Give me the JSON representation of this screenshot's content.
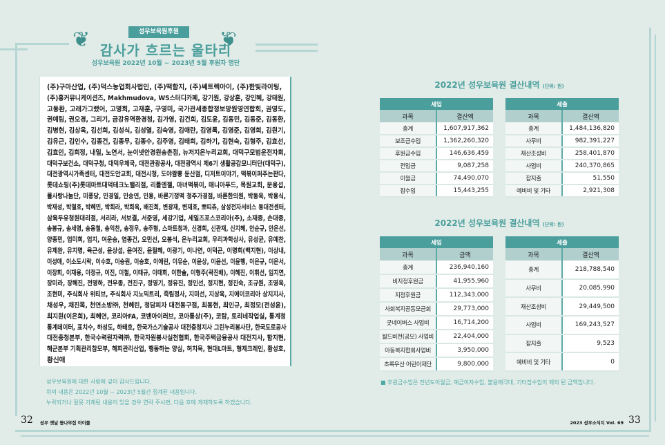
{
  "header": {
    "banner": "성우보육원후원",
    "title": "감사가 흐르는 울타리",
    "subtitle": "성우보육원 2022년 10월 ~ 2023년 5월 후원자 명단"
  },
  "donor_lines": [
    "(주)구마산업, (주)덕스농업회사법인, (주)떡함지, (주)쎄트렉아이, (주)한빛라이팅,",
    "(주)홍커뮤니케이션즈, Makhmudova, WS스터디카페, 강기원, 강상훈, 강인혜, 강태원,",
    "고동환, 고래가그랬어, 고명희, 고재훈, 구영미, 국가관세종합정보망원영연합회, 권영도,",
    "권예림, 권오경, 그리기, 금강유역환경청, 김가영, 김건희, 김도윤, 김동민, 김동준, 김동환,",
    "김병현, 김상욱, 김선희, 김성식, 김성열, 김숙영, 김애란, 김영록, 김영준, 김영희, 김원기,",
    "김유근, 김인수, 김종건, 김종무, 김종수, 김주영, 김태희, 김하기, 김현숙, 김형주, 김효선,",
    "김효인, 김희정, 내일, 노연서, 눈이넷안경원송촌점, 뉴저지온누리교회, 대덕구모범운전자회,",
    "대덕구보건소, 대덕구청, 대덕우체국, 대전관광공사, 대전광역시 제6기 생활공감모니터단(대덕구),",
    "대전광역시가족센터, 대전도안교회, 대전시청, 도야짬뽕 둔산점, 디저트이야기, 떡볶이퍼주는판다,",
    "롯데쇼핑(주)롯데마트대덕테크노밸리점, 리틀엔젤, 마녀떡볶이, 매니아푸드, 목원교회, 문용섭,",
    "물사랑나눔단, 미퐁당, 민경일, 민승연, 민용, 바른기정떡 청주가경점, 바른한의원, 박동욱, 박용식,",
    "박재성, 박철호, 박혜민, 박회라, 박희옥, 배진희, 변광재, 변재호, 뽀띠츄, 삼성전자서비스 동대전센터,",
    "삼육두유청원대리점, 서리라, 서보결, 서준영, 세강기업, 세일즈포스코리아(주), 소재중, 손대중,",
    "송봉규, 송세영, 송용철, 송익찬, 송정우, 송주형, 스마트청과, 신경희, 신관재, 신지혜, 안순규, 안은선,",
    "양종민, 엄미희, 엄지, 여운승, 염종건, 오민선, 오봉석, 온누리교회, 우리과학상사, 유성균, 유예찬,",
    "유제완, 유지명, 육근성, 윤상섭, 윤여진, 윤필혜, 이광기, 이나연, 이덕곤, 이명희(백지현), 이상내,",
    "이성애, 이소도시락, 이수호, 이승원, 이승호, 이애린, 이유순, 이윤상, 이윤선, 이윤행, 이은규, 이은서,",
    "이장희, 이재용, 이정규, 이진, 이철, 이태규, 이태희, 이한솔, 이형주(곽진배), 이혜진, 이휘선, 임지연,",
    "장미라, 장혜진, 전명하, 전우종, 전진구, 정영기, 정유진, 정인선, 정지현, 정진숙, 조규원, 조영욱,",
    "조현미, 주식회사 위티브, 주식회사 지노믹트리, 죽림정사, 지미선, 지상욱, 지에이코리아 상지지사,",
    "채성우, 채진목, 천연소방㈜, 천혜린, 청담피자 대전동구점, 최동현, 최인규, 최정모(전성윤),",
    "최지원(이은희), 최혜연, 코리아FA, 코밴아이러브, 코아통상(주), 코탐, 토리네작업실, 통계청",
    "통계데이터, 표치수, 하성도, 하태호, 한국가스기술공사 대전충청지사 그린누리봉사단, 한국도로공사",
    "대전충청본부, 한국수력원자력㈜, 한국자원봉사실천협회, 한국주택금융공사 대전지사, 함지현,",
    "해군본부 기획관리참모부, 해피관리산업, 행동하는 양심, 허치욱, 현대L마트, 형제크레인, 황성호,",
    "황신애"
  ],
  "notes": [
    "성우보육원에 대한 사랑에 깊이 감사드립니다.",
    "위의 내용은 2022년 10월 ~ 2023년 5월간 집계된 내용입니다.",
    "누락되거나 잘못 기재된 내용이 있을 경우 연락 주시면, 다음 호에 게재하도록 하겠습니다."
  ],
  "settlement1": {
    "title": "2022년 성우보육원 결산내역",
    "unit": "(단위: 원)",
    "income": {
      "header": "세입",
      "col_item": "과목",
      "col_amount": "결산액",
      "rows": [
        [
          "총계",
          "1,607,917,362"
        ],
        [
          "보조금수입",
          "1,362,260,320"
        ],
        [
          "후원금수입",
          "146,636,459"
        ],
        [
          "전입금",
          "9,087,258"
        ],
        [
          "이월금",
          "74,490,070"
        ],
        [
          "잡수입",
          "15,443,255"
        ]
      ]
    },
    "expense": {
      "header": "세출",
      "col_item": "과목",
      "col_amount": "결산액",
      "rows": [
        [
          "총계",
          "1,484,136,820"
        ],
        [
          "사무비",
          "982,391,227"
        ],
        [
          "재산조성비",
          "258,401,870"
        ],
        [
          "사업비",
          "240,370,865"
        ],
        [
          "잡지출",
          "51,550"
        ],
        [
          "예비비 및 기타",
          "2,921,308"
        ]
      ]
    }
  },
  "settlement2": {
    "title": "2022년 성우보육원 결산내역",
    "unit": "(단위: 원)",
    "income": {
      "header": "세입",
      "col_item": "과목",
      "col_amount": "금액",
      "rows": [
        [
          "총계",
          "236,940,160"
        ],
        [
          "비지정후원금",
          "41,955,960"
        ],
        [
          "지정후원금",
          "112,343,000"
        ],
        [
          "사회복지공동모금회",
          "29,773,000"
        ],
        [
          "굿네이버스 사업비",
          "16,714,200"
        ],
        [
          "월드비전(공모) 사업비",
          "22,404,000"
        ],
        [
          "아동복지협회사업비",
          "3,950,000"
        ],
        [
          "초록우산 어린이재단",
          "9,800,000"
        ]
      ]
    },
    "expense": {
      "header": "세출",
      "col_item": "과목",
      "col_amount": "결산액",
      "rows": [
        [
          "총계",
          "218,788,540"
        ],
        [
          "사무비",
          "20,085,990"
        ],
        [
          "재산조성비",
          "29,449,500"
        ],
        [
          "사업비",
          "169,243,527"
        ],
        [
          "잡지출",
          "9,523"
        ],
        [
          "예비비 및 기타",
          "0"
        ]
      ]
    }
  },
  "footnote": "■ 후원금수입은 전년도이월금, 예금이자수입, 불용매각대, 기타잡수입이 제외 된 금액입니다.",
  "footer": {
    "left_page": "32",
    "left_text": "성우 옛날 동나무집 아이들",
    "right_text": "2023 성우소식지 Vol. 69",
    "right_page": "33"
  },
  "colors": {
    "accent": "#4a9e9c",
    "background": "#e1ece8",
    "frame": "#b5d6d3"
  }
}
